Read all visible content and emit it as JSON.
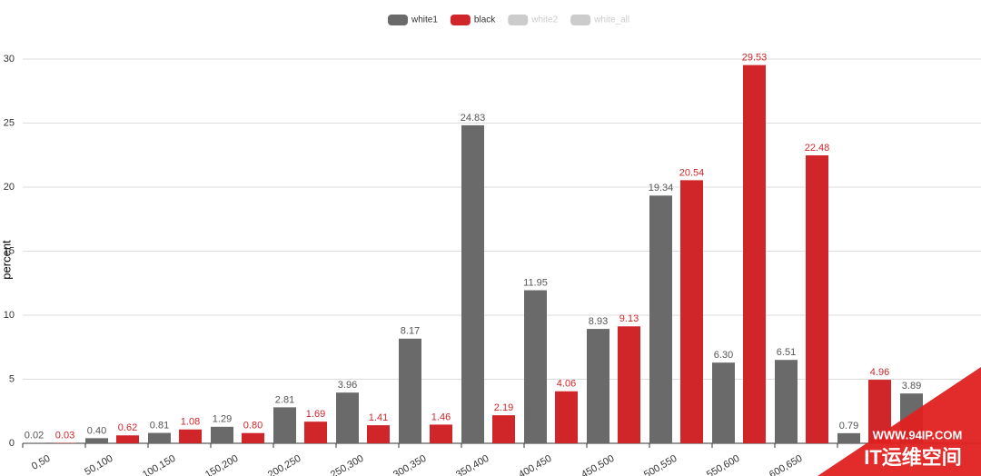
{
  "chart_data": {
    "type": "bar",
    "y_label": "percent",
    "categories": [
      "0,50",
      "50,100",
      "100,150",
      "150,200",
      "200,250",
      "250,300",
      "300,350",
      "350,400",
      "400,450",
      "450,500",
      "500,550",
      "550,600",
      "600,650",
      null,
      null
    ],
    "series": [
      {
        "name": "white1",
        "color": "#6b6a6b",
        "visible": true,
        "values": [
          0.02,
          0.4,
          0.81,
          1.29,
          2.81,
          3.96,
          8.17,
          24.83,
          11.95,
          8.93,
          19.34,
          6.3,
          6.51,
          0.79,
          3.89
        ],
        "value_labels": [
          "0.02",
          "0.40",
          "0.81",
          "1.29",
          "2.81",
          "3.96",
          "8.17",
          "24.83",
          "11.95",
          "8.93",
          "19.34",
          "6.30",
          "6.51",
          "0.79",
          "3.89"
        ]
      },
      {
        "name": "black",
        "color": "#d0262a",
        "visible": true,
        "values": [
          0.03,
          0.62,
          1.08,
          0.8,
          1.69,
          1.41,
          1.46,
          2.19,
          4.06,
          9.13,
          20.54,
          29.53,
          22.48,
          4.96,
          null
        ],
        "value_labels": [
          "0.03",
          "0.62",
          "1.08",
          "0.80",
          "1.69",
          "1.41",
          "1.46",
          "2.19",
          "4.06",
          "9.13",
          "20.54",
          "29.53",
          "22.48",
          "4.96",
          null
        ]
      },
      {
        "name": "white2",
        "color": "#cccccc",
        "visible": false,
        "values": [
          null,
          null,
          null,
          null,
          null,
          null,
          null,
          null,
          null,
          null,
          null,
          null,
          null,
          null,
          null
        ]
      },
      {
        "name": "white_all",
        "color": "#cccccc",
        "visible": false,
        "values": [
          null,
          null,
          null,
          null,
          null,
          null,
          null,
          null,
          null,
          null,
          null,
          null,
          null,
          null,
          null
        ]
      }
    ],
    "ylim": [
      0,
      30
    ],
    "yticks": [
      0,
      5,
      10,
      15,
      20,
      25,
      30
    ],
    "grid": true,
    "legend": "top"
  },
  "watermark": {
    "url": "WWW.94IP.COM",
    "name": "IT运维空间"
  }
}
